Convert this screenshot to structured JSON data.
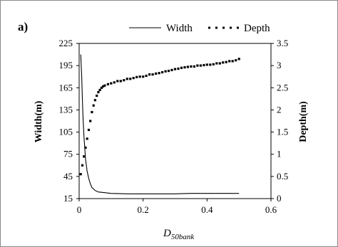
{
  "chart_data": {
    "type": "line",
    "panel_label": "a)",
    "xlabel": "D",
    "xlabel_subscript": "50bank",
    "ylabel_left": "Width(m)",
    "ylabel_right": "Depth(m)",
    "xlim": [
      0,
      0.6
    ],
    "ylim_left": [
      15,
      225
    ],
    "ylim_right": [
      0,
      3.5
    ],
    "x_ticks": [
      "0",
      "0.2",
      "0.4",
      "0.6"
    ],
    "y_left_ticks": [
      "15",
      "45",
      "75",
      "105",
      "135",
      "165",
      "195",
      "225"
    ],
    "y_right_ticks": [
      "0",
      "0.5",
      "1",
      "1.5",
      "2",
      "2.5",
      "3",
      "3.5"
    ],
    "legend_position": "top",
    "series": [
      {
        "name": "Width",
        "axis": "left",
        "style": "solid",
        "x": [
          0.005,
          0.008,
          0.01,
          0.012,
          0.015,
          0.018,
          0.02,
          0.025,
          0.03,
          0.035,
          0.04,
          0.05,
          0.06,
          0.08,
          0.1,
          0.15,
          0.2,
          0.25,
          0.3,
          0.35,
          0.4,
          0.45,
          0.5
        ],
        "y": [
          210,
          180,
          150,
          125,
          100,
          80,
          68,
          52,
          42,
          35,
          30,
          26,
          24,
          23,
          22,
          21.5,
          21.5,
          21.5,
          21.5,
          22,
          22,
          22,
          22
        ]
      },
      {
        "name": "Depth",
        "axis": "right",
        "style": "dotted",
        "x": [
          0.005,
          0.01,
          0.015,
          0.02,
          0.025,
          0.03,
          0.035,
          0.04,
          0.045,
          0.05,
          0.055,
          0.06,
          0.065,
          0.07,
          0.075,
          0.08,
          0.09,
          0.1,
          0.11,
          0.12,
          0.13,
          0.14,
          0.15,
          0.16,
          0.17,
          0.18,
          0.19,
          0.2,
          0.21,
          0.22,
          0.23,
          0.24,
          0.25,
          0.26,
          0.27,
          0.28,
          0.29,
          0.3,
          0.31,
          0.32,
          0.33,
          0.34,
          0.35,
          0.36,
          0.37,
          0.38,
          0.39,
          0.4,
          0.41,
          0.42,
          0.43,
          0.44,
          0.45,
          0.46,
          0.47,
          0.48,
          0.49,
          0.5
        ],
        "y": [
          0.55,
          0.75,
          0.95,
          1.15,
          1.35,
          1.55,
          1.75,
          1.95,
          2.1,
          2.22,
          2.32,
          2.4,
          2.45,
          2.5,
          2.53,
          2.55,
          2.58,
          2.6,
          2.62,
          2.65,
          2.65,
          2.67,
          2.7,
          2.7,
          2.72,
          2.74,
          2.75,
          2.75,
          2.77,
          2.8,
          2.8,
          2.82,
          2.83,
          2.85,
          2.87,
          2.88,
          2.9,
          2.92,
          2.93,
          2.95,
          2.96,
          2.97,
          2.98,
          2.98,
          3.0,
          3.0,
          3.01,
          3.02,
          3.02,
          3.03,
          3.05,
          3.05,
          3.07,
          3.08,
          3.1,
          3.1,
          3.12,
          3.15
        ]
      }
    ]
  }
}
